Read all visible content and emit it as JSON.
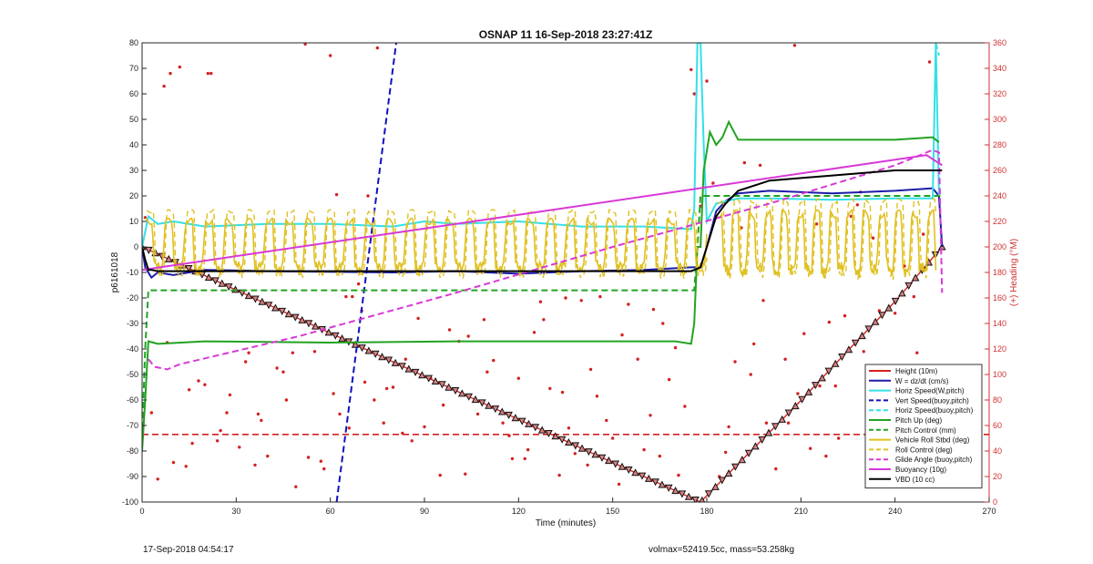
{
  "chart_data": {
    "type": "line",
    "title": "OSNAP 11 16-Sep-2018 23:27:41Z",
    "xlabel": "Time (minutes)",
    "ylabel": "p6161018",
    "y2label": "(+) Heading (°M)",
    "xlim": [
      0,
      270
    ],
    "ylim": [
      -100,
      80
    ],
    "y2lim": [
      0,
      360
    ],
    "xticks": [
      0,
      30,
      60,
      90,
      120,
      150,
      180,
      210,
      240,
      270
    ],
    "yticks": [
      -100,
      -90,
      -80,
      -70,
      -60,
      -50,
      -40,
      -30,
      -20,
      -10,
      0,
      10,
      20,
      30,
      40,
      50,
      60,
      70,
      80
    ],
    "y2ticks": [
      0,
      20,
      40,
      60,
      80,
      100,
      120,
      140,
      160,
      180,
      200,
      220,
      240,
      260,
      280,
      300,
      320,
      340,
      360
    ],
    "grid": false,
    "legend_position": "bottom-right",
    "colors": {
      "red": "#d42020",
      "blue": "#1c1ca8",
      "cyan": "#33e0e8",
      "dashblue": "#1010c0",
      "green": "#22a322",
      "gold": "#e0c020",
      "magenta": "#d838d8",
      "black": "#000000",
      "heading": "#d42020"
    },
    "series": [
      {
        "name": "Height (10m)",
        "color": "red",
        "style": "solid-markers",
        "x": [
          0,
          30,
          60,
          90,
          120,
          150,
          178,
          195,
          210,
          225,
          240,
          255
        ],
        "y": [
          0,
          -16.9,
          -33.8,
          -50.7,
          -67.6,
          -84.5,
          -100,
          -78.8,
          -60.2,
          -40.6,
          -21.4,
          0
        ]
      },
      {
        "name": "W = dz/dt (cm/s)",
        "color": "blue",
        "style": "solid",
        "x": [
          0,
          1,
          3,
          5,
          10,
          20,
          40,
          80,
          100,
          120,
          140,
          160,
          175,
          178,
          180,
          183,
          186,
          190,
          200,
          220,
          240,
          252,
          254,
          255
        ],
        "y": [
          0,
          -8,
          -12,
          -10,
          -11,
          -9,
          -9.5,
          -10,
          -9.5,
          -10.5,
          -9.5,
          -9,
          -8,
          -8,
          0,
          14,
          18,
          21,
          22,
          21,
          22,
          23,
          20,
          0
        ]
      },
      {
        "name": "Horiz Speed(W,pitch)",
        "color": "cyan",
        "style": "solid",
        "x": [
          0,
          2,
          5,
          10,
          20,
          40,
          60,
          80,
          90,
          100,
          120,
          140,
          160,
          175,
          176,
          177,
          178,
          179,
          180,
          183,
          190,
          200,
          220,
          240,
          252,
          253,
          254
        ],
        "y": [
          0,
          12,
          9,
          10,
          8,
          9,
          9,
          8,
          10,
          9,
          10,
          8,
          8,
          7,
          15,
          80,
          80,
          40,
          10,
          17,
          19,
          19,
          18.5,
          19,
          19,
          80,
          20
        ]
      },
      {
        "name": "Vert Speed(buoy,pitch)",
        "color": "dashblue",
        "style": "dashed",
        "x": [
          62,
          81
        ],
        "y": [
          -100,
          80
        ]
      },
      {
        "name": "Horiz Speed(buoy,pitch)",
        "color": "cyan",
        "style": "dashed",
        "x": [
          253,
          254
        ],
        "y": [
          80,
          75
        ]
      },
      {
        "name": "Pitch Up (deg)",
        "color": "green",
        "style": "solid",
        "x": [
          0,
          1,
          2,
          5,
          20,
          60,
          100,
          140,
          170,
          175,
          176,
          177,
          178,
          179,
          181,
          183,
          185,
          187,
          190,
          200,
          220,
          240,
          252,
          254
        ],
        "y": [
          -80,
          -60,
          -37,
          -38,
          -37,
          -37.5,
          -37,
          -37,
          -37,
          -38,
          -30,
          0,
          0,
          30,
          45,
          40,
          43,
          49,
          42,
          42,
          42,
          42,
          43,
          41
        ]
      },
      {
        "name": "Pitch Control (mm)",
        "color": "green",
        "style": "dashed",
        "x": [
          0,
          1,
          2,
          176,
          177,
          178,
          179,
          255
        ],
        "y": [
          -75,
          -40,
          -17,
          -17,
          0,
          20,
          20,
          20
        ]
      },
      {
        "name": "Vehicle Roll Stbd (deg)",
        "color": "gold",
        "style": "solid",
        "x": [
          1,
          180,
          183,
          253
        ],
        "y": [
          5,
          5,
          10,
          0
        ]
      },
      {
        "name": "Roll Control (deg)",
        "color": "gold",
        "style": "dashed",
        "x": [
          1,
          180,
          183,
          253
        ],
        "y": [
          5,
          5,
          10,
          0
        ]
      },
      {
        "name": "Glide Angle (buoy,pitch)",
        "color": "magenta",
        "style": "dashed",
        "x": [
          2,
          4,
          8,
          12,
          50,
          100,
          150,
          200,
          240,
          252,
          254,
          255
        ],
        "y": [
          -44,
          -47,
          -48,
          -46,
          -35,
          -18,
          0,
          17,
          32,
          38,
          37,
          -18
        ]
      },
      {
        "name": "Buoyancy (10g)",
        "color": "magenta",
        "style": "solid",
        "x": [
          0,
          250,
          255
        ],
        "y": [
          -9,
          36,
          32
        ]
      },
      {
        "name": "VBD (10 cc)",
        "color": "black",
        "style": "solid",
        "x": [
          0,
          1,
          2,
          3,
          5,
          10,
          50,
          100,
          150,
          175,
          176,
          178,
          180,
          183,
          186,
          190,
          200,
          220,
          240,
          250,
          255
        ],
        "y": [
          0,
          -5,
          -9,
          -9,
          -9.5,
          -9.5,
          -9.5,
          -9.5,
          -9.5,
          -9.5,
          -9,
          -8,
          0,
          12,
          17,
          22,
          26,
          28,
          30,
          30,
          30
        ]
      }
    ],
    "reference_line": {
      "color": "red",
      "style": "dashed",
      "y": -73.5,
      "x": [
        0,
        270
      ]
    },
    "heading_points": {
      "name": "(+) Heading (°M)",
      "axis": "right",
      "color": "heading",
      "x": [
        1,
        7,
        9,
        12,
        21,
        22,
        52,
        60,
        62,
        65,
        69,
        72,
        75,
        98,
        109,
        120,
        123,
        136,
        146,
        148,
        157,
        163,
        165,
        175,
        176,
        178,
        180,
        192,
        197,
        208,
        211,
        224,
        229,
        233,
        240,
        246,
        251,
        3,
        10,
        14,
        16,
        18,
        20,
        25,
        28,
        31,
        34,
        37,
        40,
        43,
        46,
        49,
        55,
        58,
        63,
        67,
        70,
        78,
        83,
        88,
        92,
        95,
        104,
        112,
        115,
        118,
        127,
        130,
        133,
        140,
        143,
        152,
        155,
        160,
        168,
        171,
        184,
        187,
        189,
        195,
        199,
        202,
        205,
        213,
        216,
        219,
        222,
        226,
        231,
        236,
        238,
        243,
        249,
        5,
        24,
        33,
        38,
        45,
        57,
        66,
        74,
        80,
        86,
        90,
        101,
        107,
        110,
        122,
        125,
        135,
        138,
        145,
        150,
        158,
        166,
        173,
        182,
        191,
        194,
        206,
        215,
        221,
        228,
        235,
        241,
        247,
        8,
        15,
        27,
        36,
        48,
        53,
        61,
        71,
        77,
        84,
        96,
        103,
        117,
        128,
        134,
        142,
        153,
        162,
        170,
        186,
        198,
        209,
        218,
        230,
        244
      ],
      "y": [
        223,
        326,
        336,
        341,
        336,
        336,
        359,
        350,
        241,
        161,
        171,
        240,
        356,
        135,
        143,
        97,
        41,
        58,
        161,
        64,
        23,
        151,
        36,
        339,
        320,
        232,
        330,
        266,
        264,
        358,
        132,
        146,
        243,
        207,
        148,
        161,
        345,
        70,
        31,
        28,
        46,
        95,
        92,
        56,
        84,
        43,
        117,
        69,
        36,
        105,
        80,
        12,
        118,
        26,
        69,
        161,
        150,
        89,
        54,
        144,
        97,
        21,
        130,
        111,
        62,
        34,
        157,
        89,
        21,
        158,
        104,
        14,
        155,
        41,
        96,
        21,
        20,
        59,
        110,
        124,
        62,
        26,
        112,
        42,
        91,
        141,
        50,
        224,
        105,
        77,
        31,
        185,
        210,
        18,
        48,
        110,
        64,
        102,
        32,
        58,
        80,
        90,
        48,
        59,
        126,
        69,
        102,
        34,
        133,
        160,
        38,
        83,
        50,
        112,
        140,
        75,
        250,
        215,
        100,
        62,
        218,
        91,
        233,
        150,
        57,
        117,
        125,
        88,
        70,
        29,
        117,
        35,
        85,
        94,
        62,
        112,
        76,
        22,
        52,
        143,
        86,
        29,
        131,
        68,
        121,
        39,
        158,
        85,
        36,
        118,
        46
      ]
    }
  },
  "footer": {
    "left": "17-Sep-2018 04:54:17",
    "right": "volmax=52419.5cc, mass=53.258kg"
  }
}
